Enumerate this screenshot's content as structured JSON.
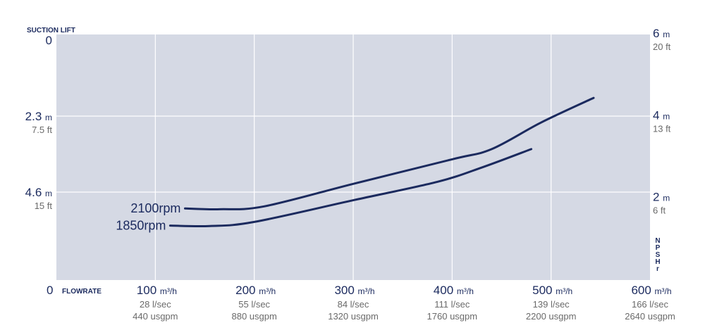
{
  "chart_data": {
    "type": "line",
    "left_axis_title": "SUCTION LIFT",
    "bottom_axis_title": "FLOWRATE",
    "right_axis_title": "NPSHr",
    "xlim": [
      0,
      600
    ],
    "left_ylim_m": [
      0,
      7.5
    ],
    "right_ylim_m": [
      0,
      6.5
    ],
    "grid": true,
    "x_ticks": [
      {
        "value": 100,
        "main": "100",
        "unit": "m³/h",
        "sub1": "28 l/sec",
        "sub2": "440 usgpm"
      },
      {
        "value": 200,
        "main": "200",
        "unit": "m³/h",
        "sub1": "55 l/sec",
        "sub2": "880 usgpm"
      },
      {
        "value": 300,
        "main": "300",
        "unit": "m³/h",
        "sub1": "84 l/sec",
        "sub2": "1320 usgpm"
      },
      {
        "value": 400,
        "main": "400",
        "unit": "m³/h",
        "sub1": "111 l/sec",
        "sub2": "1760 usgpm"
      },
      {
        "value": 500,
        "main": "500",
        "unit": "m³/h",
        "sub1": "139 l/sec",
        "sub2": "2200 usgpm"
      },
      {
        "value": 600,
        "main": "600",
        "unit": "m³/h",
        "sub1": "166 l/sec",
        "sub2": "2640 usgpm"
      }
    ],
    "x_zero_label": "0",
    "left_ticks": [
      {
        "value": 0,
        "main": "0",
        "sub": ""
      },
      {
        "value": 2.3,
        "main": "2.3",
        "unit": "m",
        "sub": "7.5 ft"
      },
      {
        "value": 4.6,
        "main": "4.6",
        "unit": "m",
        "sub": "15 ft"
      }
    ],
    "right_ticks": [
      {
        "value": 6,
        "main": "6",
        "unit": "m",
        "sub": "20 ft"
      },
      {
        "value": 4,
        "main": "4",
        "unit": "m",
        "sub": "13 ft"
      },
      {
        "value": 2,
        "main": "2",
        "unit": "m",
        "sub": "6 ft"
      }
    ],
    "series": [
      {
        "name": "2100rpm",
        "color": "#1b2a5e",
        "x": [
          130,
          165,
          210,
          300,
          400,
          440,
          490,
          543
        ],
        "y": [
          1.75,
          1.73,
          1.8,
          2.35,
          2.95,
          3.2,
          3.85,
          4.45
        ]
      },
      {
        "name": "1850rpm",
        "color": "#1b2a5e",
        "x": [
          115,
          155,
          200,
          300,
          385,
          430,
          480
        ],
        "y": [
          1.33,
          1.32,
          1.42,
          1.95,
          2.4,
          2.75,
          3.2
        ]
      }
    ]
  },
  "colors": {
    "plot_bg": "#d5d9e4",
    "grid": "#ffffff",
    "navy": "#1b2a5e",
    "grey": "#6a6a6a"
  }
}
